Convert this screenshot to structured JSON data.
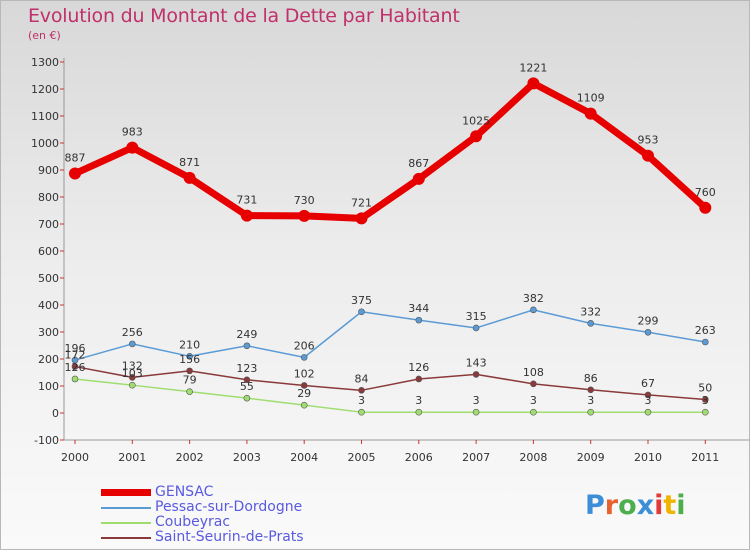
{
  "title": "Evolution du Montant de la Dette par Habitant",
  "subtitle": "(en €)",
  "logo": {
    "text": "Proxiti",
    "colors": [
      "#3c8fd6",
      "#e8622e",
      "#4cae4c",
      "#3c8fd6",
      "#e23a3a",
      "#f0b400",
      "#4cae4c"
    ]
  },
  "chart_data": {
    "type": "line",
    "categories": [
      "2000",
      "2001",
      "2002",
      "2003",
      "2004",
      "2005",
      "2006",
      "2007",
      "2008",
      "2009",
      "2010",
      "2011"
    ],
    "ylim": [
      -100,
      1300
    ],
    "yticks": [
      -100,
      0,
      100,
      200,
      300,
      400,
      500,
      600,
      700,
      800,
      900,
      1000,
      1100,
      1200,
      1300
    ],
    "grid": false,
    "legend": "bottom-left",
    "series": [
      {
        "name": "GENSAC",
        "color": "#e60000",
        "width": 7,
        "marker": 6,
        "values": [
          887,
          983,
          871,
          731,
          730,
          721,
          867,
          1025,
          1221,
          1109,
          953,
          760
        ]
      },
      {
        "name": "Pessac-sur-Dordogne",
        "color": "#5b9bd5",
        "width": 1.5,
        "marker": 3,
        "values": [
          196,
          256,
          210,
          249,
          206,
          375,
          344,
          315,
          382,
          332,
          299,
          263
        ]
      },
      {
        "name": "Coubeyrac",
        "color": "#a0dd70",
        "width": 1.5,
        "marker": 3,
        "values": [
          126,
          103,
          79,
          55,
          29,
          3,
          3,
          3,
          3,
          3,
          3,
          3
        ]
      },
      {
        "name": "Saint-Seurin-de-Prats",
        "color": "#8a3a3a",
        "width": 1.5,
        "marker": 3,
        "values": [
          172,
          132,
          156,
          123,
          102,
          84,
          126,
          143,
          108,
          86,
          67,
          50
        ]
      }
    ]
  }
}
